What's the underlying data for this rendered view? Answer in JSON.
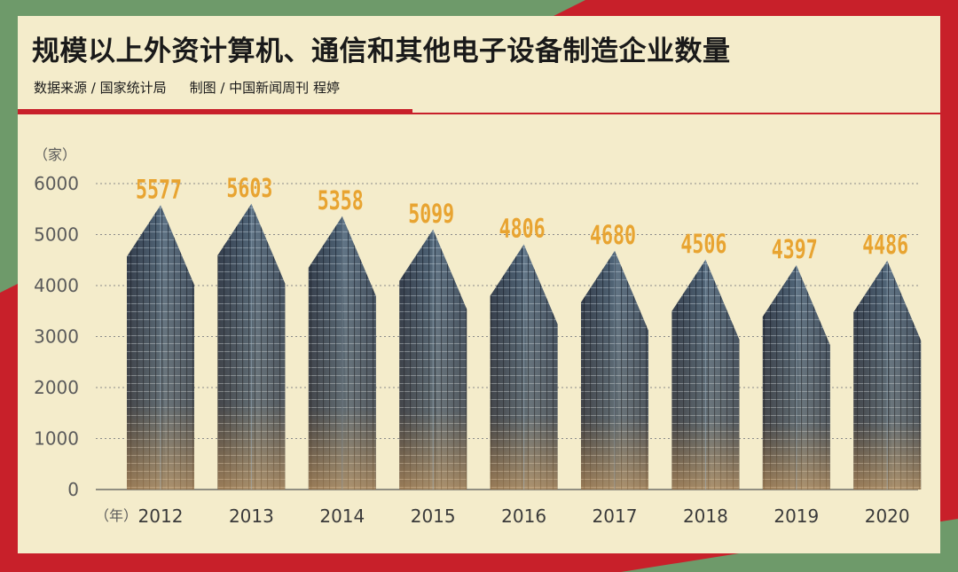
{
  "header": {
    "title": "规模以上外资计算机、通信和其他电子设备制造企业数量",
    "source": "数据来源 / 国家统计局",
    "credit": "制图 / 中国新闻周刊 程婷"
  },
  "colors": {
    "background": "#c8202a",
    "accent_green": "#6e9a6a",
    "panel": "#f4eccb",
    "value_label": "#e8a431",
    "axis_text": "#5a5a5a"
  },
  "chart_data": {
    "type": "bar",
    "title": "规模以上外资计算机、通信和其他电子设备制造企业数量",
    "ylabel": "（家）",
    "xlabel": "（年）",
    "categories": [
      "2012",
      "2013",
      "2014",
      "2015",
      "2016",
      "2017",
      "2018",
      "2019",
      "2020"
    ],
    "values": [
      5577,
      5603,
      5358,
      5099,
      4806,
      4680,
      4506,
      4397,
      4486
    ],
    "ylim": [
      0,
      6000
    ],
    "yticks": [
      0,
      1000,
      2000,
      3000,
      4000,
      5000,
      6000
    ],
    "grid": true,
    "bar_style": "skyscraper",
    "legend": "none"
  }
}
